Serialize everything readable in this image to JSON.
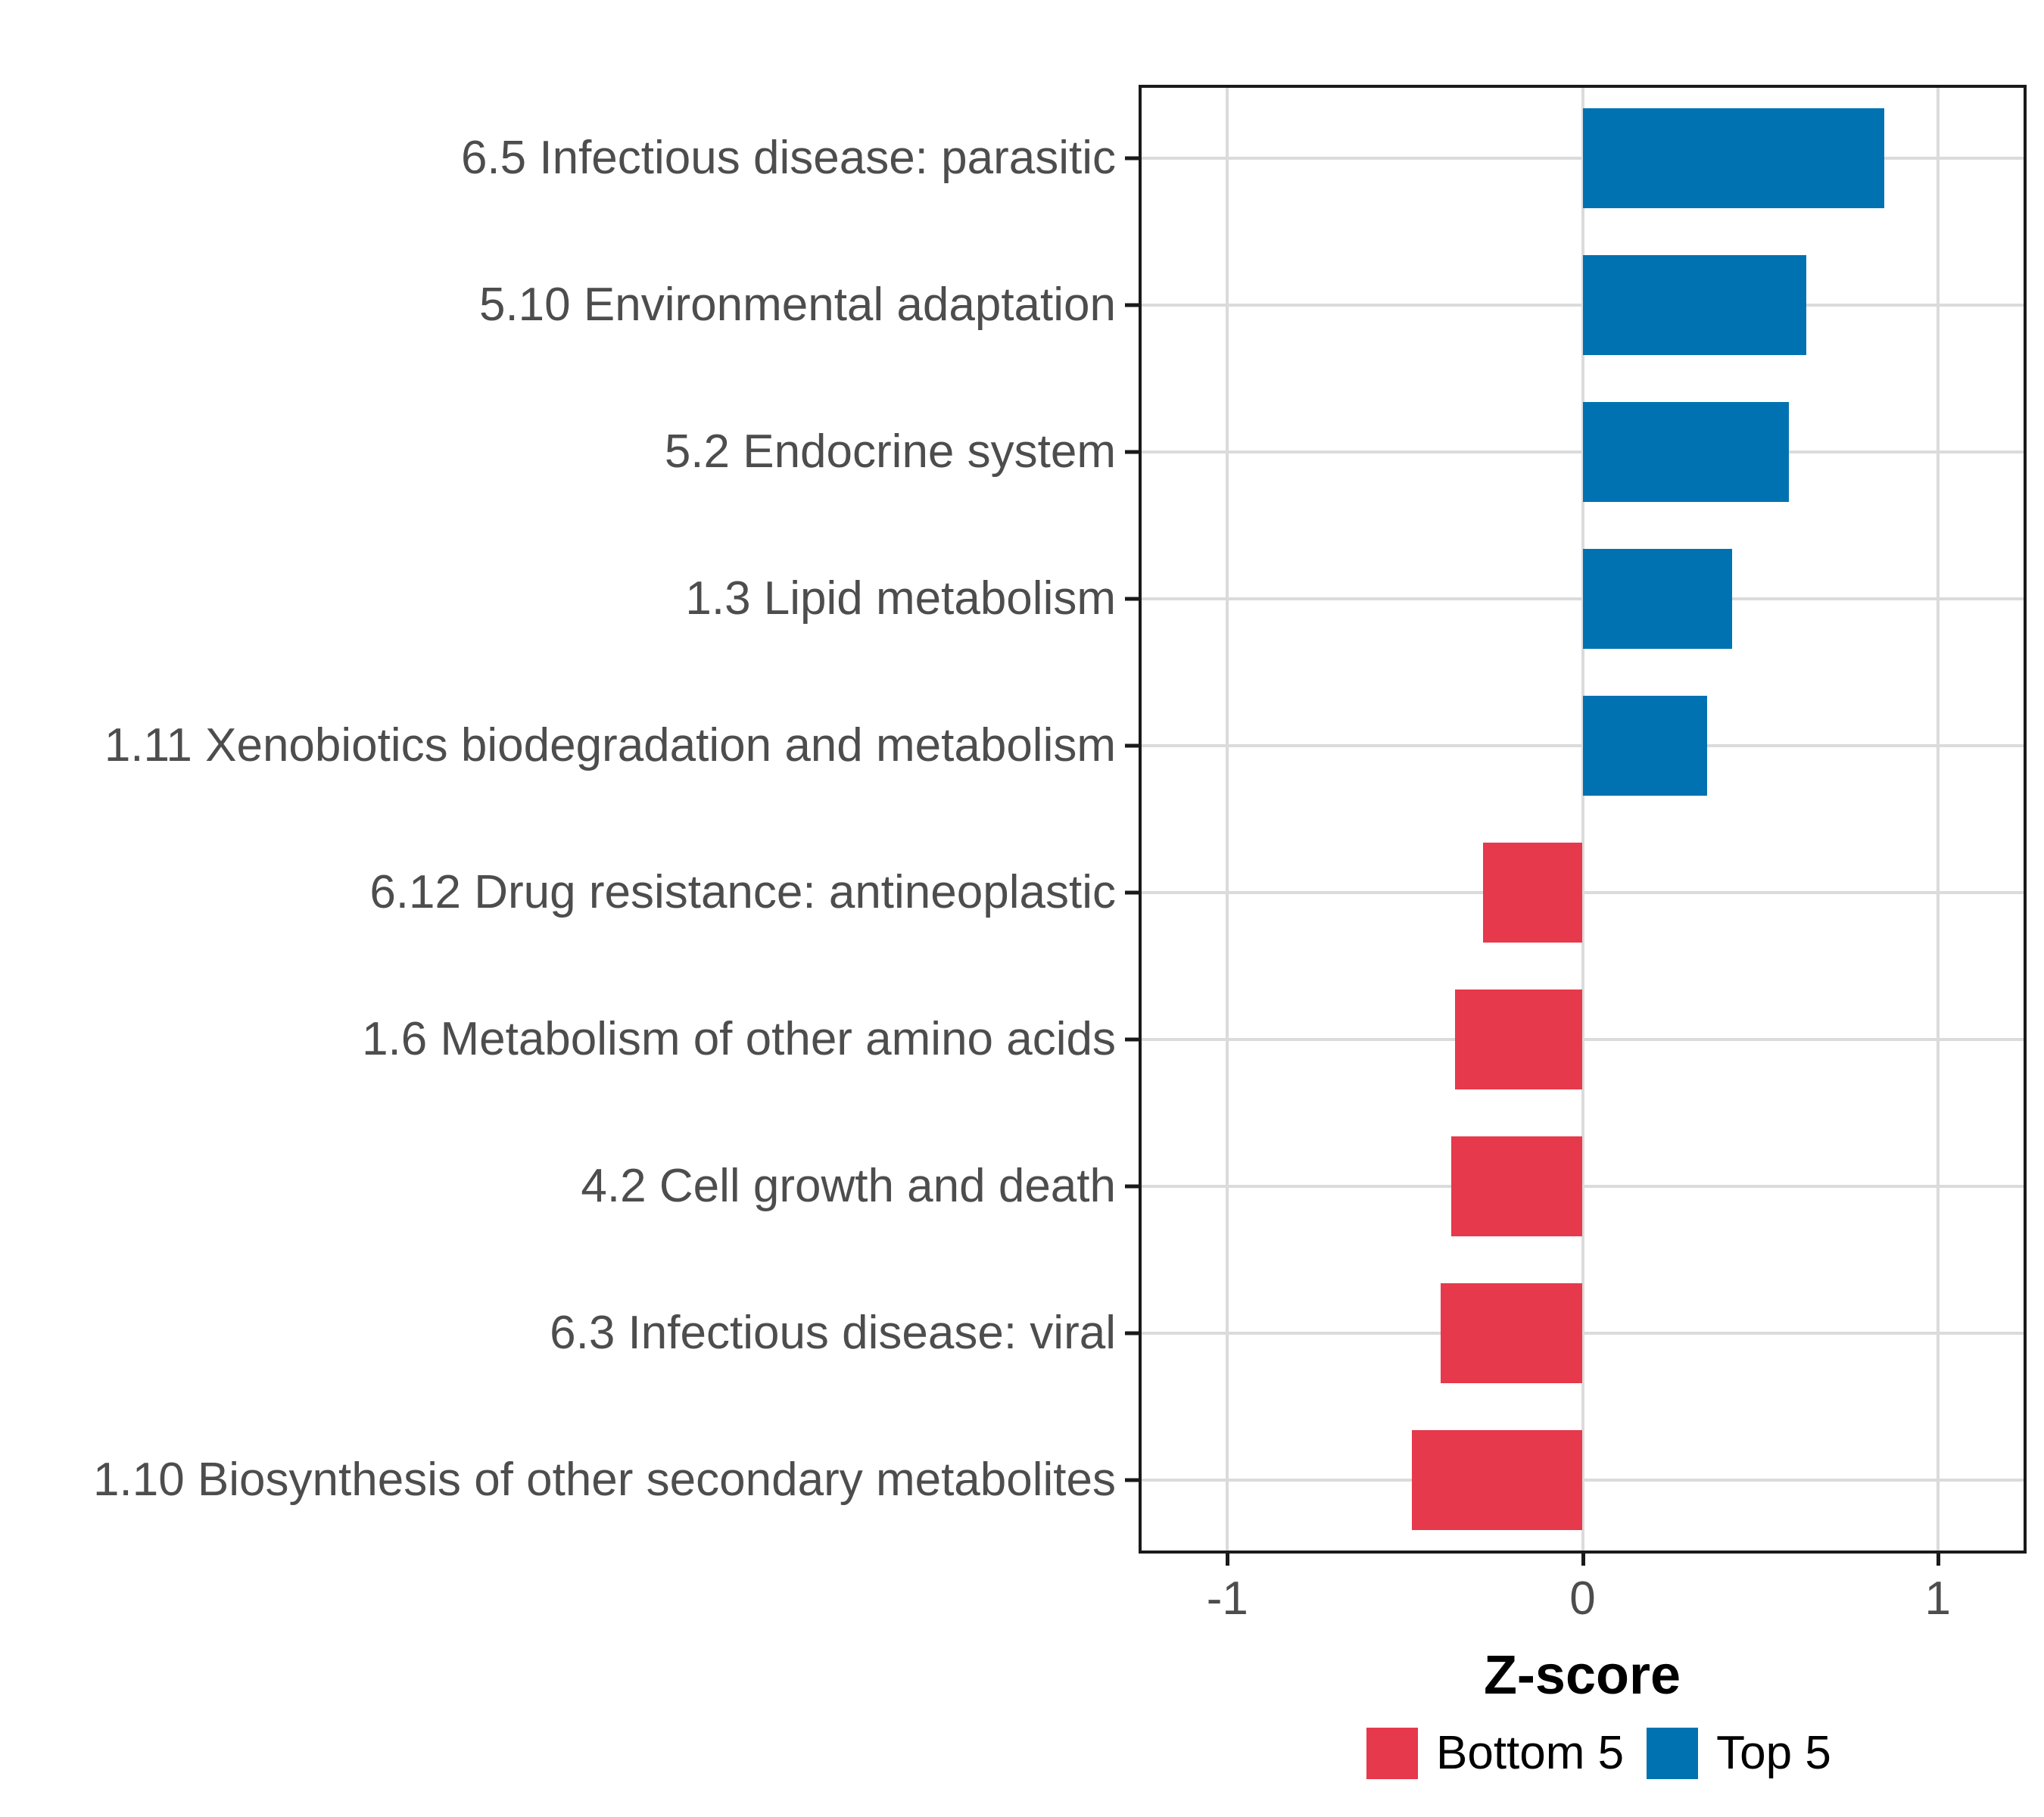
{
  "chart_data": {
    "type": "bar",
    "orientation": "horizontal",
    "title": "",
    "xlabel": "Z-score",
    "ylabel": "",
    "categories": [
      "6.5 Infectious disease: parasitic",
      "5.10 Environmental adaptation",
      "5.2 Endocrine system",
      "1.3 Lipid metabolism",
      "1.11 Xenobiotics biodegradation and metabolism",
      "6.12 Drug resistance: antineoplastic",
      "1.6 Metabolism of other amino acids",
      "4.2 Cell growth and death",
      "6.3 Infectious disease: viral",
      "1.10 Biosynthesis of other secondary metabolites"
    ],
    "values": [
      0.85,
      0.63,
      0.58,
      0.42,
      0.35,
      -0.28,
      -0.36,
      -0.37,
      -0.4,
      -0.48
    ],
    "groups": [
      "Top 5",
      "Top 5",
      "Top 5",
      "Top 5",
      "Top 5",
      "Bottom 5",
      "Bottom 5",
      "Bottom 5",
      "Bottom 5",
      "Bottom 5"
    ],
    "colors": {
      "Top 5": "#0072B2",
      "Bottom 5": "#E6394B"
    },
    "xlim": [
      -1.25,
      1.25
    ],
    "x_ticks": [
      {
        "value": -1,
        "label": "-1"
      },
      {
        "value": 0,
        "label": "0"
      },
      {
        "value": 1,
        "label": "1"
      }
    ],
    "grid": "major",
    "legend": {
      "position": "bottom",
      "entries": [
        {
          "label": "Bottom 5",
          "color": "#E6394B"
        },
        {
          "label": "Top 5",
          "color": "#0072B2"
        }
      ]
    }
  }
}
